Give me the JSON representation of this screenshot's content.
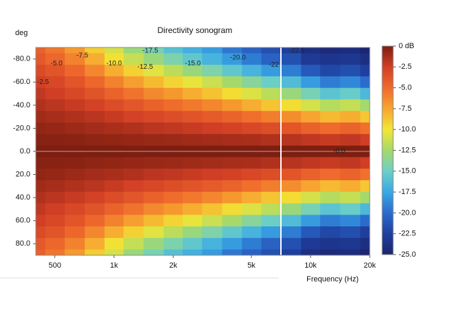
{
  "chart_data": {
    "type": "heatmap",
    "title": "Directivity sonogram",
    "ylabel": "deg",
    "xlabel": "Frequency (Hz)",
    "log_x": true,
    "x": [
      400,
      500,
      630,
      800,
      1000,
      1250,
      1600,
      2000,
      2500,
      3150,
      4000,
      5000,
      6300,
      8000,
      10000,
      12500,
      16000,
      20000
    ],
    "y": [
      -90,
      -80,
      -70,
      -60,
      -50,
      -40,
      -30,
      -20,
      -10,
      0,
      10,
      20,
      30,
      40,
      50,
      60,
      70,
      80,
      90
    ],
    "z": [
      [
        -4.5,
        -5.5,
        -7.0,
        -9.0,
        -11.0,
        -13.0,
        -14.5,
        -16.0,
        -17.0,
        -18.0,
        -19.5,
        -20.5,
        -21.5,
        -22.5,
        -24.0,
        -24.5,
        -24.2,
        -25.0
      ],
      [
        -4.0,
        -4.8,
        -6.0,
        -7.8,
        -9.8,
        -11.5,
        -13.0,
        -14.3,
        -15.5,
        -16.8,
        -18.0,
        -19.3,
        -20.5,
        -21.5,
        -23.0,
        -23.5,
        -23.3,
        -24.0
      ],
      [
        -3.2,
        -3.8,
        -4.8,
        -6.2,
        -7.8,
        -9.2,
        -10.6,
        -11.8,
        -13.0,
        -14.2,
        -15.5,
        -16.8,
        -18.0,
        -19.3,
        -21.0,
        -22.0,
        -21.6,
        -22.5
      ],
      [
        -2.5,
        -3.0,
        -3.8,
        -4.8,
        -6.0,
        -7.2,
        -8.3,
        -9.3,
        -10.3,
        -11.3,
        -12.5,
        -13.8,
        -15.0,
        -16.3,
        -18.0,
        -19.3,
        -18.8,
        -20.0
      ],
      [
        -2.0,
        -2.4,
        -3.0,
        -3.7,
        -4.6,
        -5.4,
        -6.3,
        -7.0,
        -7.8,
        -8.6,
        -9.6,
        -10.7,
        -11.8,
        -13.0,
        -14.5,
        -15.8,
        -15.2,
        -16.5
      ],
      [
        -1.5,
        -1.8,
        -2.2,
        -2.7,
        -3.3,
        -3.9,
        -4.5,
        -5.1,
        -5.6,
        -6.2,
        -7.0,
        -7.8,
        -8.7,
        -9.6,
        -11.0,
        -12.0,
        -11.5,
        -12.6
      ],
      [
        -1.0,
        -1.2,
        -1.5,
        -1.8,
        -2.2,
        -2.6,
        -3.0,
        -3.4,
        -3.7,
        -4.1,
        -4.6,
        -5.2,
        -5.8,
        -6.5,
        -7.5,
        -8.3,
        -7.8,
        -8.8
      ],
      [
        -0.6,
        -0.7,
        -0.9,
        -1.1,
        -1.3,
        -1.5,
        -1.8,
        -2.0,
        -2.2,
        -2.4,
        -2.7,
        -3.0,
        -3.4,
        -3.8,
        -4.5,
        -5.0,
        -4.6,
        -5.3
      ],
      [
        -0.3,
        -0.3,
        -0.4,
        -0.5,
        -0.6,
        -0.7,
        -0.8,
        -0.9,
        -1.0,
        -1.1,
        -1.2,
        -1.3,
        -1.5,
        -1.7,
        -2.0,
        -2.2,
        -2.0,
        -2.4
      ],
      [
        0,
        0,
        0,
        0,
        0,
        0,
        0,
        0,
        0,
        0,
        0,
        0,
        0,
        0,
        0,
        0,
        0,
        0
      ],
      [
        -0.3,
        -0.3,
        -0.4,
        -0.5,
        -0.6,
        -0.7,
        -0.8,
        -0.9,
        -1.0,
        -1.1,
        -1.2,
        -1.3,
        -1.5,
        -1.7,
        -2.0,
        -2.2,
        -2.0,
        -2.4
      ],
      [
        -0.6,
        -0.7,
        -0.9,
        -1.1,
        -1.3,
        -1.5,
        -1.8,
        -2.0,
        -2.2,
        -2.4,
        -2.7,
        -3.0,
        -3.4,
        -3.8,
        -4.5,
        -5.0,
        -4.6,
        -5.3
      ],
      [
        -1.0,
        -1.2,
        -1.5,
        -1.8,
        -2.2,
        -2.6,
        -3.0,
        -3.4,
        -3.7,
        -4.1,
        -4.6,
        -5.2,
        -5.8,
        -6.5,
        -7.5,
        -8.3,
        -7.8,
        -8.8
      ],
      [
        -1.5,
        -1.8,
        -2.2,
        -2.7,
        -3.3,
        -3.9,
        -4.5,
        -5.1,
        -5.6,
        -6.2,
        -7.0,
        -7.8,
        -8.7,
        -9.6,
        -11.0,
        -12.0,
        -11.5,
        -12.6
      ],
      [
        -2.0,
        -2.4,
        -3.0,
        -3.7,
        -4.6,
        -5.4,
        -6.3,
        -7.0,
        -7.8,
        -8.6,
        -9.6,
        -10.7,
        -11.8,
        -13.0,
        -14.5,
        -15.8,
        -15.2,
        -16.5
      ],
      [
        -2.5,
        -3.0,
        -3.8,
        -4.8,
        -6.0,
        -7.2,
        -8.3,
        -9.3,
        -10.3,
        -11.3,
        -12.5,
        -13.8,
        -15.0,
        -16.3,
        -18.0,
        -19.3,
        -18.8,
        -20.0
      ],
      [
        -3.2,
        -3.8,
        -4.8,
        -6.2,
        -7.8,
        -9.2,
        -10.6,
        -11.8,
        -13.0,
        -14.2,
        -15.5,
        -16.8,
        -18.0,
        -19.3,
        -21.0,
        -22.0,
        -21.6,
        -22.5
      ],
      [
        -4.0,
        -4.8,
        -6.0,
        -7.8,
        -9.8,
        -11.5,
        -13.0,
        -14.3,
        -15.5,
        -16.8,
        -18.0,
        -19.3,
        -20.5,
        -21.5,
        -23.0,
        -23.5,
        -23.3,
        -24.0
      ],
      [
        -4.5,
        -5.5,
        -7.0,
        -9.0,
        -11.0,
        -13.0,
        -14.5,
        -16.0,
        -17.0,
        -18.0,
        -19.5,
        -20.5,
        -21.5,
        -22.5,
        -24.0,
        -24.5,
        -24.2,
        -25.0
      ]
    ],
    "xlim": [
      400,
      20000
    ],
    "xticks": [
      500,
      {
        "value": 1000,
        "label": "1k"
      },
      {
        "value": 2000,
        "label": "2k"
      },
      {
        "value": 5000,
        "label": "5k"
      },
      {
        "value": 10000,
        "label": "10k"
      },
      {
        "value": 20000,
        "label": "20k"
      }
    ],
    "ylim": [
      -90,
      90
    ],
    "yticks": [
      {
        "value": -80,
        "label": "-80.0"
      },
      {
        "value": -60,
        "label": "-60.0"
      },
      {
        "value": -40,
        "label": "-40.0"
      },
      {
        "value": -20,
        "label": "-20.0"
      },
      {
        "value": 0,
        "label": "0.0"
      },
      {
        "value": 20,
        "label": "20.0"
      },
      {
        "value": 40,
        "label": "40.0"
      },
      {
        "value": 60,
        "label": "60.0"
      },
      {
        "value": 80,
        "label": "80.0"
      }
    ],
    "clim": [
      -25,
      0
    ],
    "cticks": [
      {
        "value": 0,
        "label": "0 dB"
      },
      -2.5,
      {
        "value": -5,
        "label": "-5.0"
      },
      -7.5,
      {
        "value": -10,
        "label": "-10.0"
      },
      -12.5,
      {
        "value": -15,
        "label": "-15.0"
      },
      -17.5,
      {
        "value": -20,
        "label": "-20.0"
      },
      -22.5,
      {
        "value": -25,
        "label": "-25.0"
      }
    ],
    "colormap": [
      "#1b2570",
      "#1f3f9e",
      "#2b6bcc",
      "#3aa8e4",
      "#6ccfc6",
      "#a6d96a",
      "#f2e635",
      "#f7a530",
      "#ef6a2c",
      "#d23f26",
      "#7e1e10"
    ],
    "annotations": [
      {
        "text": "-2.5",
        "x": 435,
        "y": -60
      },
      {
        "text": "-5.0",
        "x": 510,
        "y": -76
      },
      {
        "text": "-7.5",
        "x": 690,
        "y": -83
      },
      {
        "text": "-10.0",
        "x": 1000,
        "y": -76
      },
      {
        "text": "-12.5",
        "x": 1440,
        "y": -73
      },
      {
        "text": "-17.5",
        "x": 1530,
        "y": -87
      },
      {
        "text": "-15.0",
        "x": 2520,
        "y": -76
      },
      {
        "text": "-20.0",
        "x": 4270,
        "y": -81
      },
      {
        "text": "-22",
        "x": 6500,
        "y": -75
      },
      {
        "text": "-22.5",
        "x": 8500,
        "y": -87
      },
      {
        "text": "-0.0",
        "x": 14000,
        "y": 0
      }
    ]
  }
}
